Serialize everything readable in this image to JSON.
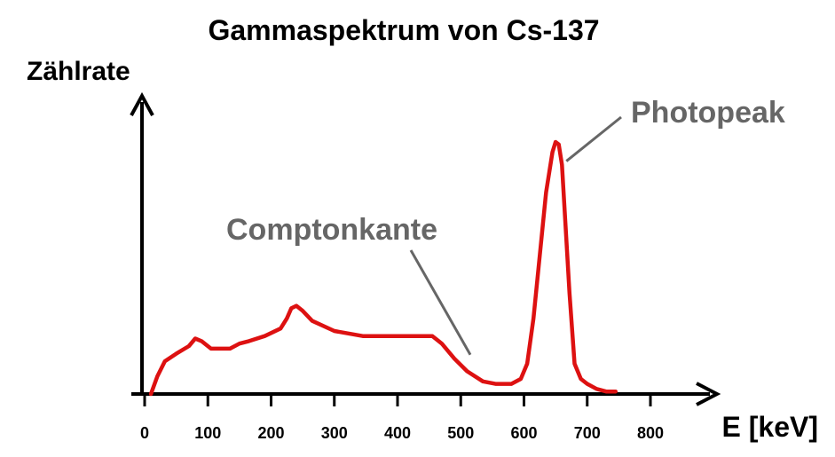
{
  "chart_data": {
    "type": "line",
    "title": "Gammaspektrum von Cs-137",
    "ylabel": "Zählrate",
    "xlabel": "E [keV]",
    "xlim": [
      0,
      800
    ],
    "xticks": [
      0,
      100,
      200,
      300,
      400,
      500,
      600,
      700,
      800
    ],
    "ylim": [
      0,
      100
    ],
    "grid": false,
    "series": [
      {
        "color": "#dd1111",
        "x": [
          10,
          20,
          32,
          50,
          70,
          80,
          90,
          105,
          135,
          150,
          165,
          190,
          215,
          225,
          232,
          240,
          250,
          265,
          300,
          345,
          400,
          440,
          455,
          470,
          490,
          510,
          535,
          555,
          580,
          595,
          605,
          615,
          625,
          635,
          645,
          650,
          655,
          660,
          665,
          672,
          680,
          690,
          700,
          715,
          730,
          745
        ],
        "y": [
          0,
          7,
          13,
          16,
          19,
          22,
          21,
          18,
          18,
          20,
          21,
          23,
          26,
          30,
          34,
          35,
          33,
          29,
          25,
          23,
          23,
          23,
          23,
          20,
          14,
          9,
          5,
          4,
          4,
          6,
          12,
          30,
          55,
          80,
          96,
          100,
          99,
          91,
          70,
          40,
          12,
          6,
          4,
          2,
          1,
          1
        ]
      }
    ],
    "annotations": [
      {
        "text": "Comptonkante",
        "x": 480
      },
      {
        "text": "Photopeak",
        "x": 660
      }
    ]
  }
}
